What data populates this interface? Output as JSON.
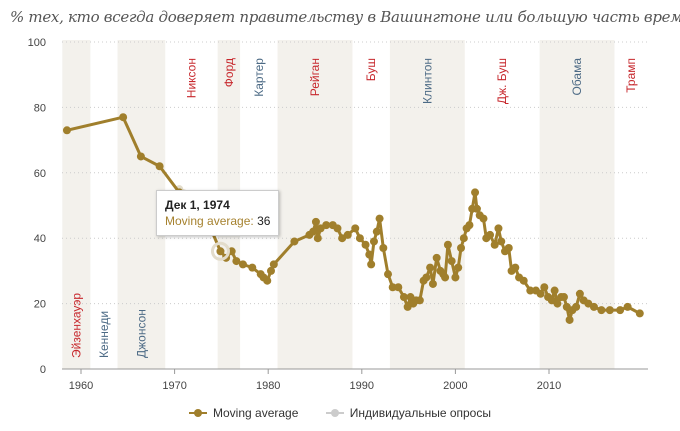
{
  "chart_data": {
    "type": "line",
    "title": "% тех, кто всегда доверяет правительству в Вашингтоне или большую часть времени",
    "xlabel": "",
    "ylabel": "",
    "xlim": [
      1958,
      2020.5
    ],
    "ylim": [
      0,
      100
    ],
    "x_ticks": [
      1960,
      1970,
      1980,
      1990,
      2000,
      2010
    ],
    "y_ticks": [
      0,
      20,
      40,
      60,
      80,
      100
    ],
    "grid": true,
    "legend_position": "bottom",
    "colors": {
      "moving_average": "#a07f2c",
      "individual": "#cfcfcf",
      "republican": "#c7282d",
      "democrat": "#4c6a85",
      "band": "#f3f1ec"
    },
    "presidents": [
      {
        "name": "Эйзенхауэр",
        "start": 1958,
        "end": 1961,
        "party": "R",
        "shaded": true
      },
      {
        "name": "Кеннеди",
        "start": 1961,
        "end": 1963.9,
        "party": "D",
        "shaded": false
      },
      {
        "name": "Джонсон",
        "start": 1963.9,
        "end": 1969,
        "party": "D",
        "shaded": true
      },
      {
        "name": "Никсон",
        "start": 1969,
        "end": 1974.6,
        "party": "R",
        "shaded": false
      },
      {
        "name": "Форд",
        "start": 1974.6,
        "end": 1977,
        "party": "R",
        "shaded": true
      },
      {
        "name": "Картер",
        "start": 1977,
        "end": 1981,
        "party": "D",
        "shaded": false
      },
      {
        "name": "Рейган",
        "start": 1981,
        "end": 1989,
        "party": "R",
        "shaded": true
      },
      {
        "name": "Буш",
        "start": 1989,
        "end": 1993,
        "party": "R",
        "shaded": false
      },
      {
        "name": "Клинтон",
        "start": 1993,
        "end": 2001,
        "party": "D",
        "shaded": true
      },
      {
        "name": "Дж. Буш",
        "start": 2001,
        "end": 2009,
        "party": "R",
        "shaded": false
      },
      {
        "name": "Обама",
        "start": 2009,
        "end": 2017,
        "party": "D",
        "shaded": true
      },
      {
        "name": "Трамп",
        "start": 2017,
        "end": 2020.5,
        "party": "R",
        "shaded": false
      }
    ],
    "series": [
      {
        "name": "Moving average",
        "x": [
          1958.5,
          1964.5,
          1966.4,
          1968.4,
          1970.5,
          1972.5,
          1974.9,
          1975.5,
          1976.1,
          1976.6,
          1977.3,
          1978.3,
          1979.2,
          1979.5,
          1979.9,
          1980.3,
          1980.6,
          1982.8,
          1984.4,
          1984.8,
          1985.1,
          1985.3,
          1985.6,
          1986.2,
          1986.9,
          1987.4,
          1987.9,
          1988.5,
          1989.3,
          1989.8,
          1990.4,
          1990.8,
          1991.0,
          1991.3,
          1991.6,
          1991.9,
          1992.3,
          1992.8,
          1993.3,
          1993.9,
          1994.5,
          1994.9,
          1995.2,
          1995.5,
          1995.8,
          1996.2,
          1996.6,
          1996.9,
          1997.3,
          1997.6,
          1998.0,
          1998.4,
          1998.7,
          1998.9,
          1999.2,
          1999.6,
          2000.0,
          2000.3,
          2000.6,
          2000.9,
          2001.2,
          2001.5,
          2001.8,
          2002.1,
          2002.3,
          2002.6,
          2003.0,
          2003.3,
          2003.7,
          2004.2,
          2004.6,
          2004.9,
          2005.3,
          2005.7,
          2006.0,
          2006.4,
          2006.8,
          2007.3,
          2008.0,
          2008.6,
          2009.1,
          2009.5,
          2009.9,
          2010.3,
          2010.6,
          2010.9,
          2011.3,
          2011.6,
          2011.9,
          2012.2,
          2012.5,
          2012.9,
          2013.3,
          2013.7,
          2014.2,
          2014.8,
          2015.6,
          2016.5,
          2017.6,
          2018.4,
          2019.7
        ],
        "values": [
          73,
          77,
          65,
          62,
          54,
          52,
          36,
          34,
          36,
          33,
          32,
          31,
          29,
          28,
          27,
          30,
          32,
          39,
          41,
          42,
          45,
          40,
          43,
          44,
          44,
          43,
          40,
          41,
          43,
          40,
          38,
          35,
          32,
          39,
          42,
          46,
          37,
          29,
          25,
          25,
          22,
          19,
          22,
          20,
          21,
          21,
          27,
          28,
          31,
          26,
          34,
          30,
          29,
          28,
          38,
          33,
          28,
          31,
          37,
          40,
          43,
          44,
          49,
          54,
          49,
          47,
          46,
          40,
          41,
          38,
          43,
          39,
          36,
          37,
          30,
          31,
          28,
          27,
          24,
          24,
          23,
          25,
          22,
          21,
          24,
          20,
          22,
          22,
          19,
          15,
          18,
          19,
          23,
          21,
          20,
          19,
          18,
          18,
          18,
          19,
          17
        ]
      },
      {
        "name": "Индивидуальные опросы",
        "x": [
          1970.5,
          1972.5,
          1974.9
        ],
        "values": [
          55,
          53,
          36
        ]
      }
    ],
    "tooltip": {
      "title": "Дек 1, 1974",
      "label": "Moving average:",
      "value": "36"
    },
    "legend": [
      "Moving average",
      "Индивидуальные опросы"
    ]
  }
}
